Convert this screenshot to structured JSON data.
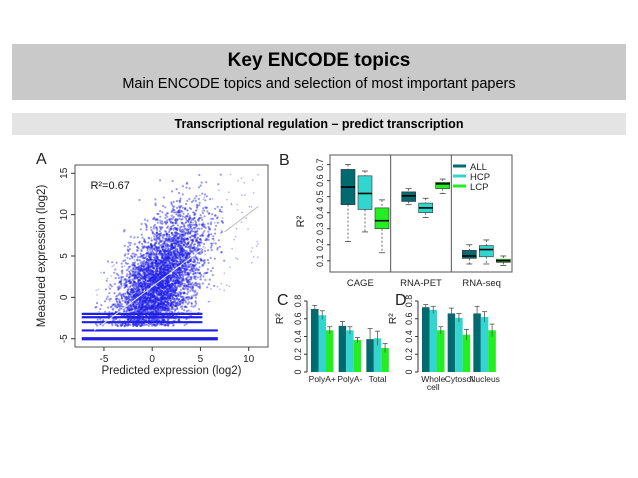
{
  "header": {
    "title": "Key ENCODE topics",
    "subtitle": "Main ENCODE topics and selection of most important papers"
  },
  "topic": {
    "label": "Transcriptional regulation – predict transcription"
  },
  "colors": {
    "all": "#006a71",
    "hcp": "#33d6cf",
    "lcp": "#22ee22",
    "scatter": "#1f1fe6"
  },
  "chart_data": [
    {
      "panel": "A",
      "type": "scatter",
      "xlabel": "Predicted expression (log2)",
      "ylabel": "Measured expression (log2)",
      "annotation": "R²=0.67",
      "xlim": [
        -8,
        12
      ],
      "ylim": [
        -6,
        16
      ],
      "xticks": [
        "-5",
        "0",
        "5",
        "10"
      ],
      "yticks": [
        "-5",
        "0",
        "5",
        "10",
        "15"
      ],
      "cloud": {
        "center": [
          0.5,
          1.0
        ],
        "principal_slope": 0.65,
        "x_range": [
          -6,
          7.5
        ],
        "y_range": [
          -3.5,
          15
        ]
      },
      "floor_bands_y": [
        -5,
        -4,
        -3,
        -2.4,
        -2
      ],
      "fit_line": [
        [
          -6,
          -4
        ],
        [
          11,
          11
        ]
      ]
    },
    {
      "panel": "B",
      "type": "box",
      "ylabel": "R²",
      "ylim": [
        0.03,
        0.76
      ],
      "yticks": [
        "0.1",
        "0.2",
        "0.3",
        "0.4",
        "0.5",
        "0.6",
        "0.7"
      ],
      "categories": [
        "CAGE",
        "RNA-PET",
        "RNA-seq"
      ],
      "legend": [
        "ALL",
        "HCP",
        "LCP"
      ],
      "legend_position": "top-right",
      "series": [
        {
          "name": "ALL",
          "boxes": [
            {
              "min": 0.22,
              "q1": 0.45,
              "median": 0.56,
              "q3": 0.67,
              "max": 0.7
            },
            {
              "min": 0.45,
              "q1": 0.47,
              "median": 0.505,
              "q3": 0.53,
              "max": 0.55
            },
            {
              "min": 0.08,
              "q1": 0.115,
              "median": 0.13,
              "q3": 0.165,
              "max": 0.2
            }
          ]
        },
        {
          "name": "HCP",
          "boxes": [
            {
              "min": 0.28,
              "q1": 0.42,
              "median": 0.52,
              "q3": 0.63,
              "max": 0.66
            },
            {
              "min": 0.37,
              "q1": 0.4,
              "median": 0.43,
              "q3": 0.46,
              "max": 0.49
            },
            {
              "min": 0.08,
              "q1": 0.125,
              "median": 0.17,
              "q3": 0.195,
              "max": 0.23
            }
          ]
        },
        {
          "name": "LCP",
          "boxes": [
            {
              "min": 0.15,
              "q1": 0.3,
              "median": 0.35,
              "q3": 0.43,
              "max": 0.48
            },
            {
              "min": 0.52,
              "q1": 0.55,
              "median": 0.58,
              "q3": 0.59,
              "max": 0.61
            },
            {
              "min": 0.07,
              "q1": 0.09,
              "median": 0.1,
              "q3": 0.11,
              "max": 0.13
            }
          ]
        }
      ]
    },
    {
      "panel": "C",
      "type": "bar",
      "ylabel": "R²",
      "ylim": [
        0,
        0.8
      ],
      "yticks": [
        "0",
        "0.2",
        "0.4",
        "0.6",
        "0.8"
      ],
      "categories": [
        "PolyA+",
        "PolyA-",
        "Total"
      ],
      "series": [
        {
          "name": "ALL",
          "values": [
            0.71,
            0.52,
            0.37
          ],
          "errors": [
            0.04,
            0.05,
            0.12
          ]
        },
        {
          "name": "HCP",
          "values": [
            0.64,
            0.47,
            0.38
          ],
          "errors": [
            0.05,
            0.04,
            0.08
          ]
        },
        {
          "name": "LCP",
          "values": [
            0.47,
            0.36,
            0.27
          ],
          "errors": [
            0.04,
            0.03,
            0.05
          ]
        }
      ]
    },
    {
      "panel": "D",
      "type": "bar",
      "ylabel": "R²",
      "ylim": [
        0,
        0.8
      ],
      "yticks": [
        "0",
        "0.2",
        "0.4",
        "0.6",
        "0.8"
      ],
      "categories": [
        "Whole\ncell",
        "Cytosol",
        "Nucleus"
      ],
      "series": [
        {
          "name": "ALL",
          "values": [
            0.73,
            0.66,
            0.66
          ],
          "errors": [
            0.03,
            0.06,
            0.08
          ]
        },
        {
          "name": "HCP",
          "values": [
            0.7,
            0.61,
            0.62
          ],
          "errors": [
            0.04,
            0.05,
            0.06
          ]
        },
        {
          "name": "LCP",
          "values": [
            0.47,
            0.42,
            0.47
          ],
          "errors": [
            0.04,
            0.06,
            0.07
          ]
        }
      ]
    }
  ]
}
